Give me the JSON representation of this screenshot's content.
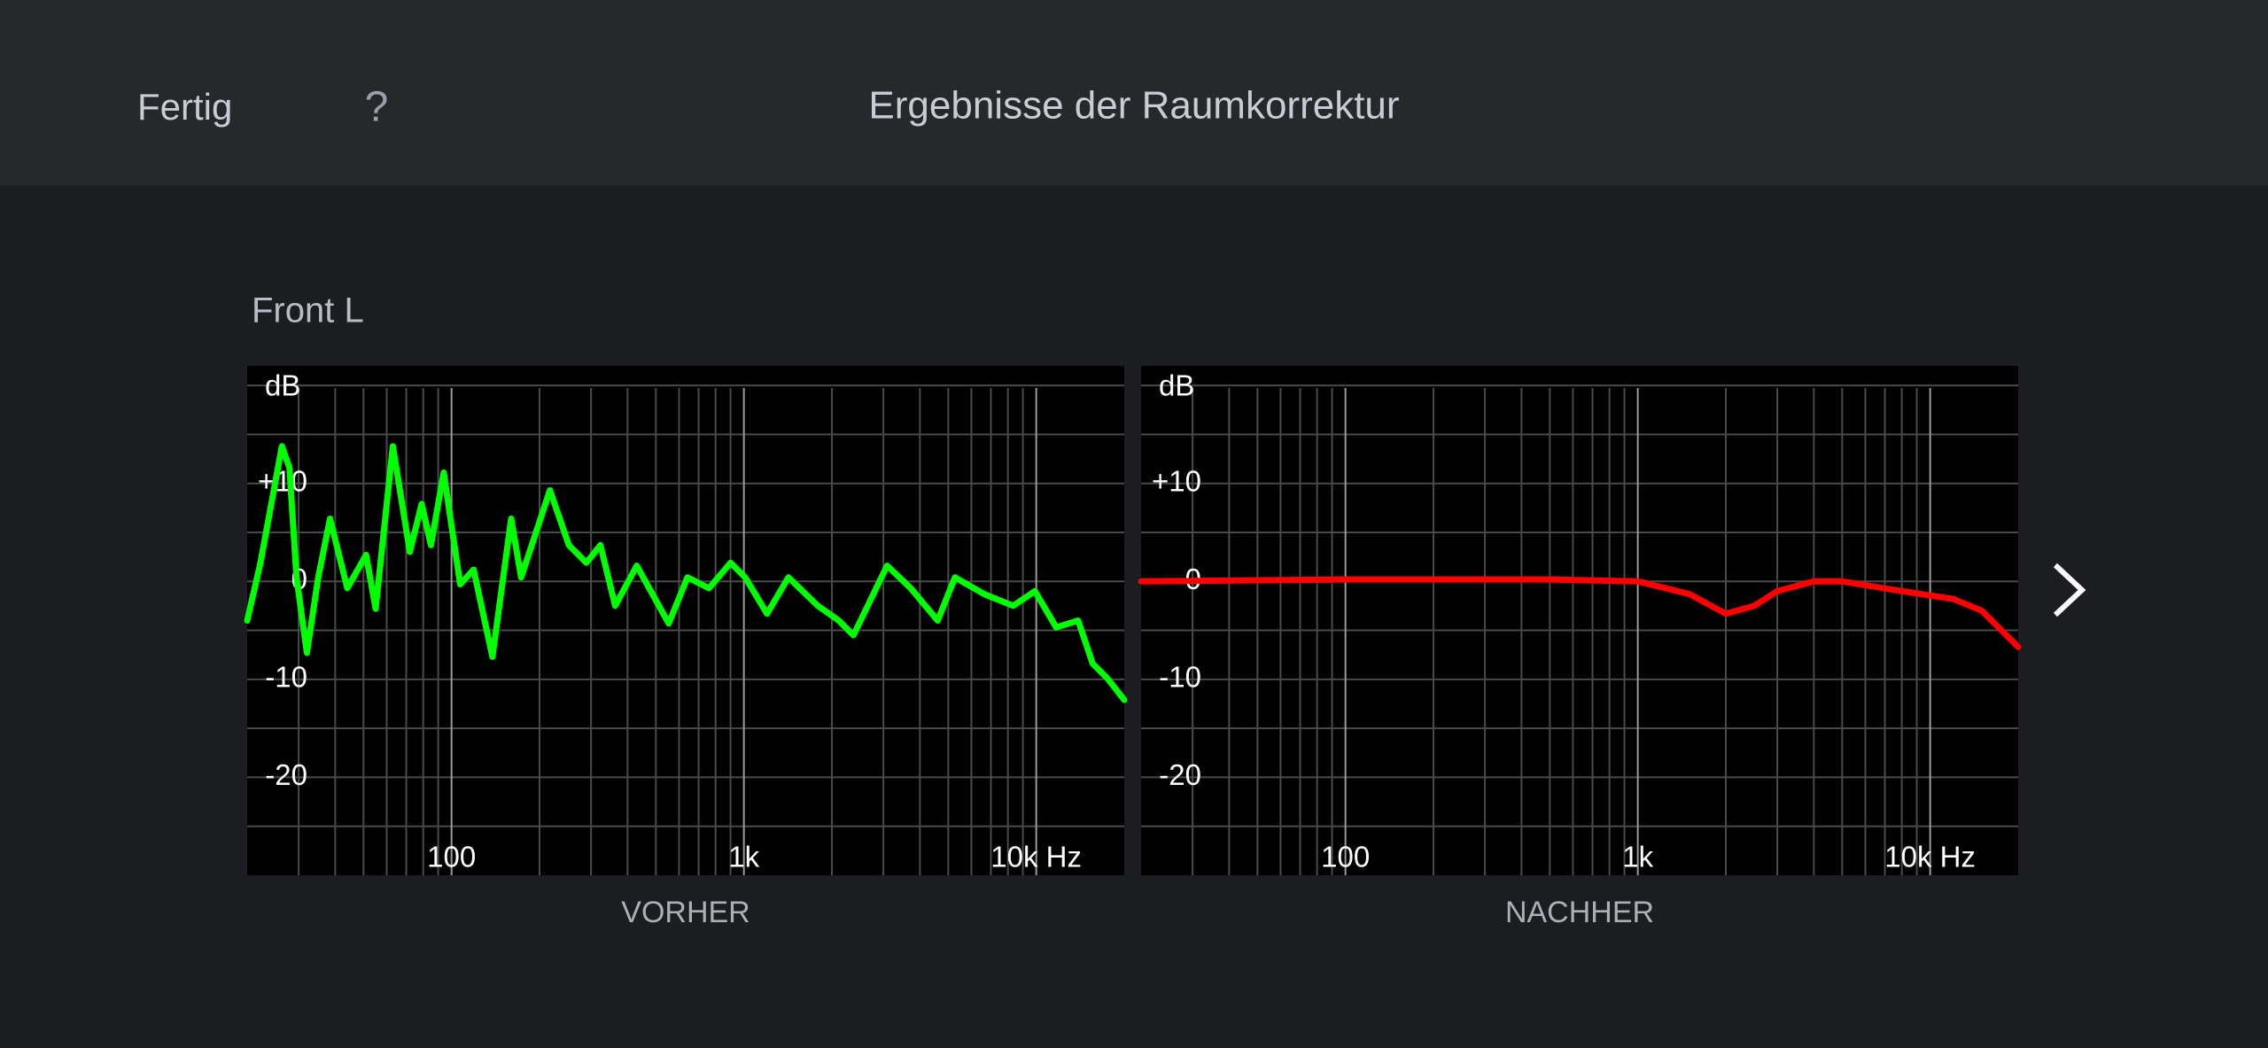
{
  "header": {
    "done": "Fertig",
    "help": "?",
    "title": "Ergebnisse der Raumkorrektur"
  },
  "section_title": "Front L",
  "chart_data": [
    {
      "type": "line",
      "xlabel": "VORHER",
      "ylabel": "dB",
      "log_x": true,
      "grid": true,
      "xlim": [
        20,
        20000
      ],
      "ylim": [
        -30,
        22
      ],
      "xticks": [
        100,
        {
          "value": 1000,
          "label": "1k"
        },
        {
          "value": 10000,
          "label": "10k Hz"
        }
      ],
      "xminorticks": [
        30,
        40,
        50,
        60,
        70,
        80,
        90,
        200,
        300,
        400,
        500,
        600,
        700,
        800,
        900,
        2000,
        3000,
        4000,
        5000,
        6000,
        7000,
        8000,
        9000
      ],
      "yticks": [
        {
          "value": 10,
          "label": "+10"
        },
        0,
        -10,
        -20
      ],
      "yminorticks": [
        -25,
        -15,
        -5,
        5,
        15,
        20
      ],
      "x": [
        20,
        22.2,
        26.3,
        27.9,
        29.5,
        32,
        35,
        38.4,
        44,
        51,
        55,
        63,
        72,
        79,
        85,
        94,
        107,
        119,
        138,
        160,
        173,
        217,
        252,
        289,
        323,
        363,
        430,
        553,
        641,
        760,
        900,
        1010,
        1200,
        1420,
        1790,
        2110,
        2370,
        3090,
        3720,
        4600,
        5270,
        6630,
        8340,
        9890,
        11700,
        13900,
        15600,
        17500,
        20000
      ],
      "series": [
        {
          "color": "#00ff00",
          "values": [
            -4,
            1.9,
            13.8,
            11.6,
            0.4,
            -7.3,
            0.4,
            6.4,
            -0.7,
            2.7,
            -2.8,
            13.8,
            3,
            7.9,
            3.7,
            11.1,
            -0.3,
            1.2,
            -7.7,
            6.4,
            0.4,
            9.3,
            3.7,
            1.9,
            3.7,
            -2.5,
            1.6,
            -4.3,
            0.4,
            -0.7,
            1.9,
            0.4,
            -3.3,
            0.4,
            -2.5,
            -4,
            -5.5,
            1.6,
            -0.7,
            -4,
            0.4,
            -1.3,
            -2.5,
            -1,
            -4.7,
            -4,
            -8.4,
            -9.9,
            -12.1
          ]
        }
      ]
    },
    {
      "type": "line",
      "xlabel": "NACHHER",
      "ylabel": "dB",
      "log_x": true,
      "grid": true,
      "xlim": [
        20,
        20000
      ],
      "ylim": [
        -30,
        22
      ],
      "xticks": [
        100,
        {
          "value": 1000,
          "label": "1k"
        },
        {
          "value": 10000,
          "label": "10k Hz"
        }
      ],
      "xminorticks": [
        30,
        40,
        50,
        60,
        70,
        80,
        90,
        200,
        300,
        400,
        500,
        600,
        700,
        800,
        900,
        2000,
        3000,
        4000,
        5000,
        6000,
        7000,
        8000,
        9000
      ],
      "yticks": [
        {
          "value": 10,
          "label": "+10"
        },
        0,
        -10,
        -20
      ],
      "yminorticks": [
        -25,
        -15,
        -5,
        5,
        15,
        20
      ],
      "x": [
        20,
        100,
        500,
        1000,
        1500,
        2000,
        2500,
        3000,
        4000,
        5000,
        8000,
        12000,
        15000,
        20000
      ],
      "series": [
        {
          "color": "#ff0000",
          "values": [
            0,
            0.2,
            0.2,
            0,
            -1.3,
            -3.3,
            -2.5,
            -1,
            0,
            0,
            -1,
            -1.8,
            -3,
            -6.7
          ]
        }
      ]
    }
  ]
}
